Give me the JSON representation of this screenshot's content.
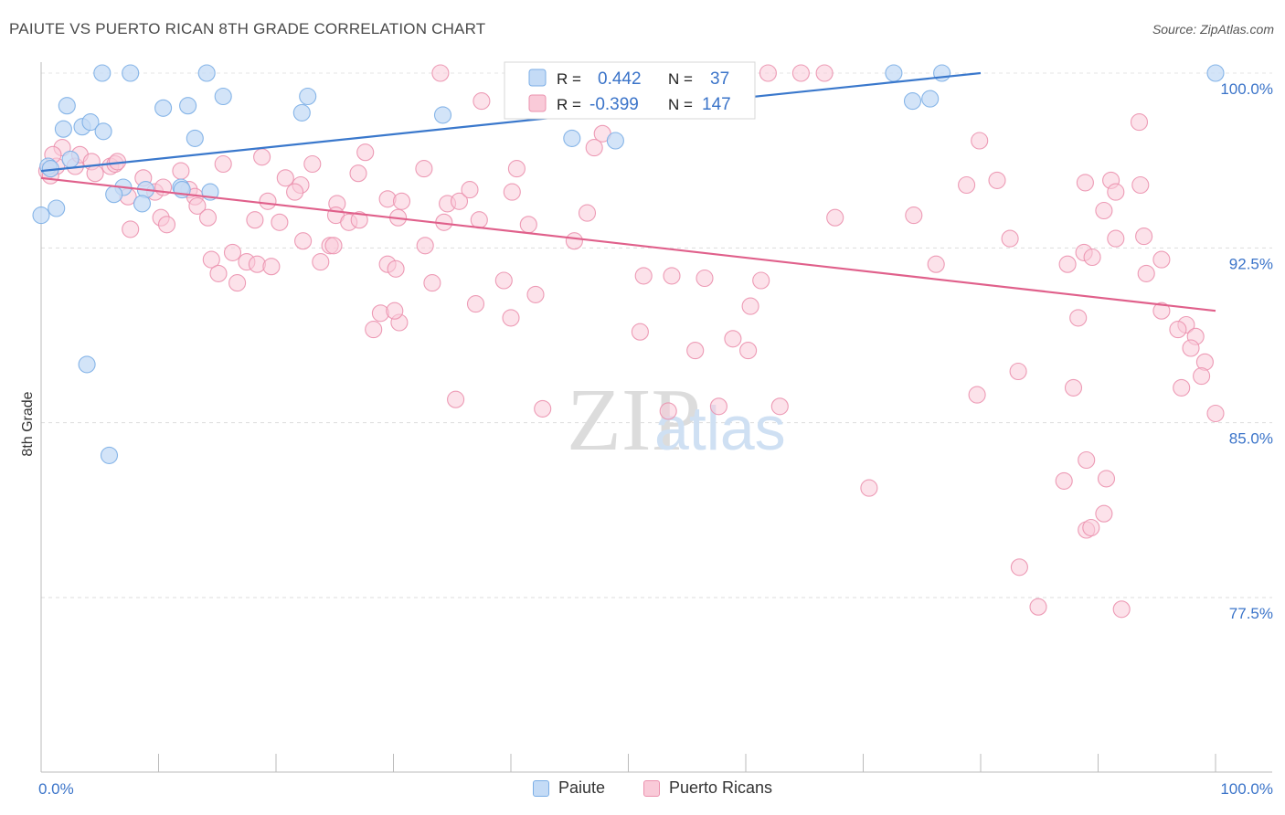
{
  "header": {
    "title": "PAIUTE VS PUERTO RICAN 8TH GRADE CORRELATION CHART",
    "source": "Source: ZipAtlas.com"
  },
  "watermark": {
    "zip": "ZIP",
    "atlas": "atlas"
  },
  "stats_legend": {
    "rows": [
      {
        "r_label": "R =",
        "r_value": "0.442",
        "n_label": "N =",
        "n_value": "37",
        "color": "#7baee6",
        "fill": "#c4dbf6"
      },
      {
        "r_label": "R =",
        "r_value": "-0.399",
        "n_label": "N =",
        "n_value": "147",
        "color": "#eb91ae",
        "fill": "#f9cad8"
      }
    ],
    "value_color": "#3b74c9"
  },
  "bottom_legend": [
    {
      "label": "Paiute",
      "fill": "#c4dbf6",
      "stroke": "#7baee6"
    },
    {
      "label": "Puerto Ricans",
      "fill": "#f9cad8",
      "stroke": "#eb91ae"
    }
  ],
  "chart_data": {
    "type": "scatter",
    "title": "PAIUTE VS PUERTO RICAN 8TH GRADE CORRELATION CHART",
    "xlabel": "",
    "ylabel": "8th Grade",
    "xlim": [
      0,
      100
    ],
    "ylim": [
      70.0,
      101.0
    ],
    "x_tick_labels": [
      "0.0%",
      "100.0%"
    ],
    "y_ticks": [
      77.5,
      85.0,
      92.5,
      100.0
    ],
    "y_tick_labels": [
      "77.5%",
      "85.0%",
      "92.5%",
      "100.0%"
    ],
    "grid": "horizontal dashed",
    "legend_position": "top-center",
    "series": [
      {
        "name": "Paiute",
        "color": "#7baee6",
        "fill": "#c4dbf6",
        "line_color": "#3a78cc",
        "trend": {
          "x": [
            0,
            80
          ],
          "y": [
            95.8,
            100.0
          ]
        },
        "points": [
          [
            5.2,
            100.0
          ],
          [
            7.6,
            100.0
          ],
          [
            14.1,
            100.0
          ],
          [
            45.3,
            100.0
          ],
          [
            72.6,
            100.0
          ],
          [
            76.7,
            100.0
          ],
          [
            100.0,
            100.0
          ],
          [
            2.2,
            98.6
          ],
          [
            10.4,
            98.5
          ],
          [
            12.5,
            98.6
          ],
          [
            15.5,
            99.0
          ],
          [
            22.7,
            99.0
          ],
          [
            22.2,
            98.3
          ],
          [
            34.2,
            98.2
          ],
          [
            74.2,
            98.8
          ],
          [
            75.7,
            98.9
          ],
          [
            1.9,
            97.6
          ],
          [
            3.5,
            97.7
          ],
          [
            4.2,
            97.9
          ],
          [
            5.3,
            97.5
          ],
          [
            13.1,
            97.2
          ],
          [
            45.2,
            97.2
          ],
          [
            48.9,
            97.1
          ],
          [
            2.5,
            96.3
          ],
          [
            0.6,
            96.0
          ],
          [
            7.0,
            95.1
          ],
          [
            8.9,
            95.0
          ],
          [
            11.9,
            95.1
          ],
          [
            6.2,
            94.8
          ],
          [
            14.4,
            94.9
          ],
          [
            8.6,
            94.4
          ],
          [
            1.3,
            94.2
          ],
          [
            0.0,
            93.9
          ],
          [
            3.9,
            87.5
          ],
          [
            5.8,
            83.6
          ],
          [
            0.8,
            95.9
          ],
          [
            12.0,
            95.0
          ]
        ]
      },
      {
        "name": "Puerto Ricans",
        "color": "#eb91ae",
        "fill": "#f9cad8",
        "line_color": "#e0608b",
        "trend": {
          "x": [
            0,
            100
          ],
          "y": [
            95.5,
            89.8
          ]
        },
        "points": [
          [
            34.0,
            100.0
          ],
          [
            44.8,
            100.0
          ],
          [
            48.4,
            100.0
          ],
          [
            54.3,
            100.0
          ],
          [
            58.6,
            100.0
          ],
          [
            61.9,
            100.0
          ],
          [
            64.7,
            100.0
          ],
          [
            66.7,
            100.0
          ],
          [
            37.5,
            98.8
          ],
          [
            93.5,
            97.9
          ],
          [
            47.8,
            97.4
          ],
          [
            47.1,
            96.8
          ],
          [
            79.9,
            97.1
          ],
          [
            27.6,
            96.6
          ],
          [
            1.8,
            96.8
          ],
          [
            1.3,
            96.0
          ],
          [
            1.0,
            96.5
          ],
          [
            0.5,
            95.8
          ],
          [
            0.8,
            95.6
          ],
          [
            2.9,
            96.0
          ],
          [
            3.3,
            96.5
          ],
          [
            4.3,
            96.2
          ],
          [
            4.6,
            95.7
          ],
          [
            5.9,
            96.0
          ],
          [
            6.3,
            96.1
          ],
          [
            6.5,
            96.2
          ],
          [
            8.7,
            95.5
          ],
          [
            9.7,
            94.9
          ],
          [
            10.4,
            95.1
          ],
          [
            11.9,
            95.8
          ],
          [
            12.6,
            95.0
          ],
          [
            13.1,
            94.7
          ],
          [
            13.3,
            94.3
          ],
          [
            15.5,
            96.1
          ],
          [
            18.8,
            96.4
          ],
          [
            20.8,
            95.5
          ],
          [
            22.1,
            95.2
          ],
          [
            23.1,
            96.1
          ],
          [
            27.0,
            95.7
          ],
          [
            32.6,
            95.9
          ],
          [
            21.6,
            94.9
          ],
          [
            19.3,
            94.5
          ],
          [
            25.2,
            94.4
          ],
          [
            29.5,
            94.6
          ],
          [
            30.7,
            94.5
          ],
          [
            34.6,
            94.4
          ],
          [
            35.6,
            94.5
          ],
          [
            36.5,
            95.0
          ],
          [
            40.1,
            94.9
          ],
          [
            40.5,
            95.9
          ],
          [
            78.8,
            95.2
          ],
          [
            81.4,
            95.4
          ],
          [
            88.9,
            95.3
          ],
          [
            91.1,
            95.4
          ],
          [
            93.6,
            95.2
          ],
          [
            91.5,
            94.9
          ],
          [
            90.5,
            94.1
          ],
          [
            7.4,
            94.7
          ],
          [
            10.2,
            93.8
          ],
          [
            10.7,
            93.5
          ],
          [
            14.2,
            93.8
          ],
          [
            18.2,
            93.7
          ],
          [
            20.3,
            93.6
          ],
          [
            25.1,
            93.9
          ],
          [
            26.2,
            93.6
          ],
          [
            27.1,
            93.7
          ],
          [
            30.4,
            93.8
          ],
          [
            34.3,
            93.6
          ],
          [
            37.3,
            93.7
          ],
          [
            46.5,
            94.0
          ],
          [
            67.6,
            93.8
          ],
          [
            74.3,
            93.9
          ],
          [
            7.6,
            93.3
          ],
          [
            41.5,
            93.5
          ],
          [
            45.4,
            92.8
          ],
          [
            22.3,
            92.8
          ],
          [
            24.6,
            92.6
          ],
          [
            24.9,
            92.6
          ],
          [
            32.7,
            92.6
          ],
          [
            82.5,
            92.9
          ],
          [
            88.8,
            92.3
          ],
          [
            89.5,
            92.1
          ],
          [
            91.5,
            92.9
          ],
          [
            93.9,
            93.0
          ],
          [
            95.4,
            92.0
          ],
          [
            14.5,
            92.0
          ],
          [
            16.3,
            92.3
          ],
          [
            17.5,
            91.9
          ],
          [
            18.4,
            91.8
          ],
          [
            19.6,
            91.7
          ],
          [
            23.8,
            91.9
          ],
          [
            29.5,
            91.8
          ],
          [
            30.2,
            91.6
          ],
          [
            39.4,
            91.1
          ],
          [
            51.3,
            91.3
          ],
          [
            56.5,
            91.2
          ],
          [
            61.3,
            91.1
          ],
          [
            76.2,
            91.8
          ],
          [
            87.4,
            91.8
          ],
          [
            94.1,
            91.4
          ],
          [
            15.1,
            91.4
          ],
          [
            16.7,
            91.0
          ],
          [
            33.3,
            91.0
          ],
          [
            28.9,
            89.7
          ],
          [
            28.3,
            89.0
          ],
          [
            30.5,
            89.3
          ],
          [
            30.1,
            89.8
          ],
          [
            37.0,
            90.1
          ],
          [
            40.0,
            89.5
          ],
          [
            42.1,
            90.5
          ],
          [
            53.7,
            91.3
          ],
          [
            51.0,
            88.9
          ],
          [
            60.4,
            90.0
          ],
          [
            88.3,
            89.5
          ],
          [
            95.4,
            89.8
          ],
          [
            97.5,
            89.2
          ],
          [
            96.8,
            89.0
          ],
          [
            98.3,
            88.7
          ],
          [
            97.9,
            88.2
          ],
          [
            99.1,
            87.6
          ],
          [
            55.7,
            88.1
          ],
          [
            58.9,
            88.6
          ],
          [
            60.2,
            88.1
          ],
          [
            83.2,
            87.2
          ],
          [
            87.9,
            86.5
          ],
          [
            98.8,
            87.0
          ],
          [
            100.0,
            85.4
          ],
          [
            35.3,
            86.0
          ],
          [
            42.7,
            85.6
          ],
          [
            53.4,
            85.5
          ],
          [
            57.7,
            85.7
          ],
          [
            62.9,
            85.7
          ],
          [
            79.7,
            86.2
          ],
          [
            87.1,
            82.5
          ],
          [
            90.7,
            82.6
          ],
          [
            90.5,
            81.1
          ],
          [
            89.0,
            80.4
          ],
          [
            70.5,
            82.2
          ],
          [
            83.3,
            78.8
          ],
          [
            84.9,
            77.1
          ],
          [
            89.4,
            80.5
          ],
          [
            89.0,
            83.4
          ],
          [
            92.0,
            77.0
          ],
          [
            97.1,
            86.5
          ]
        ]
      }
    ]
  }
}
